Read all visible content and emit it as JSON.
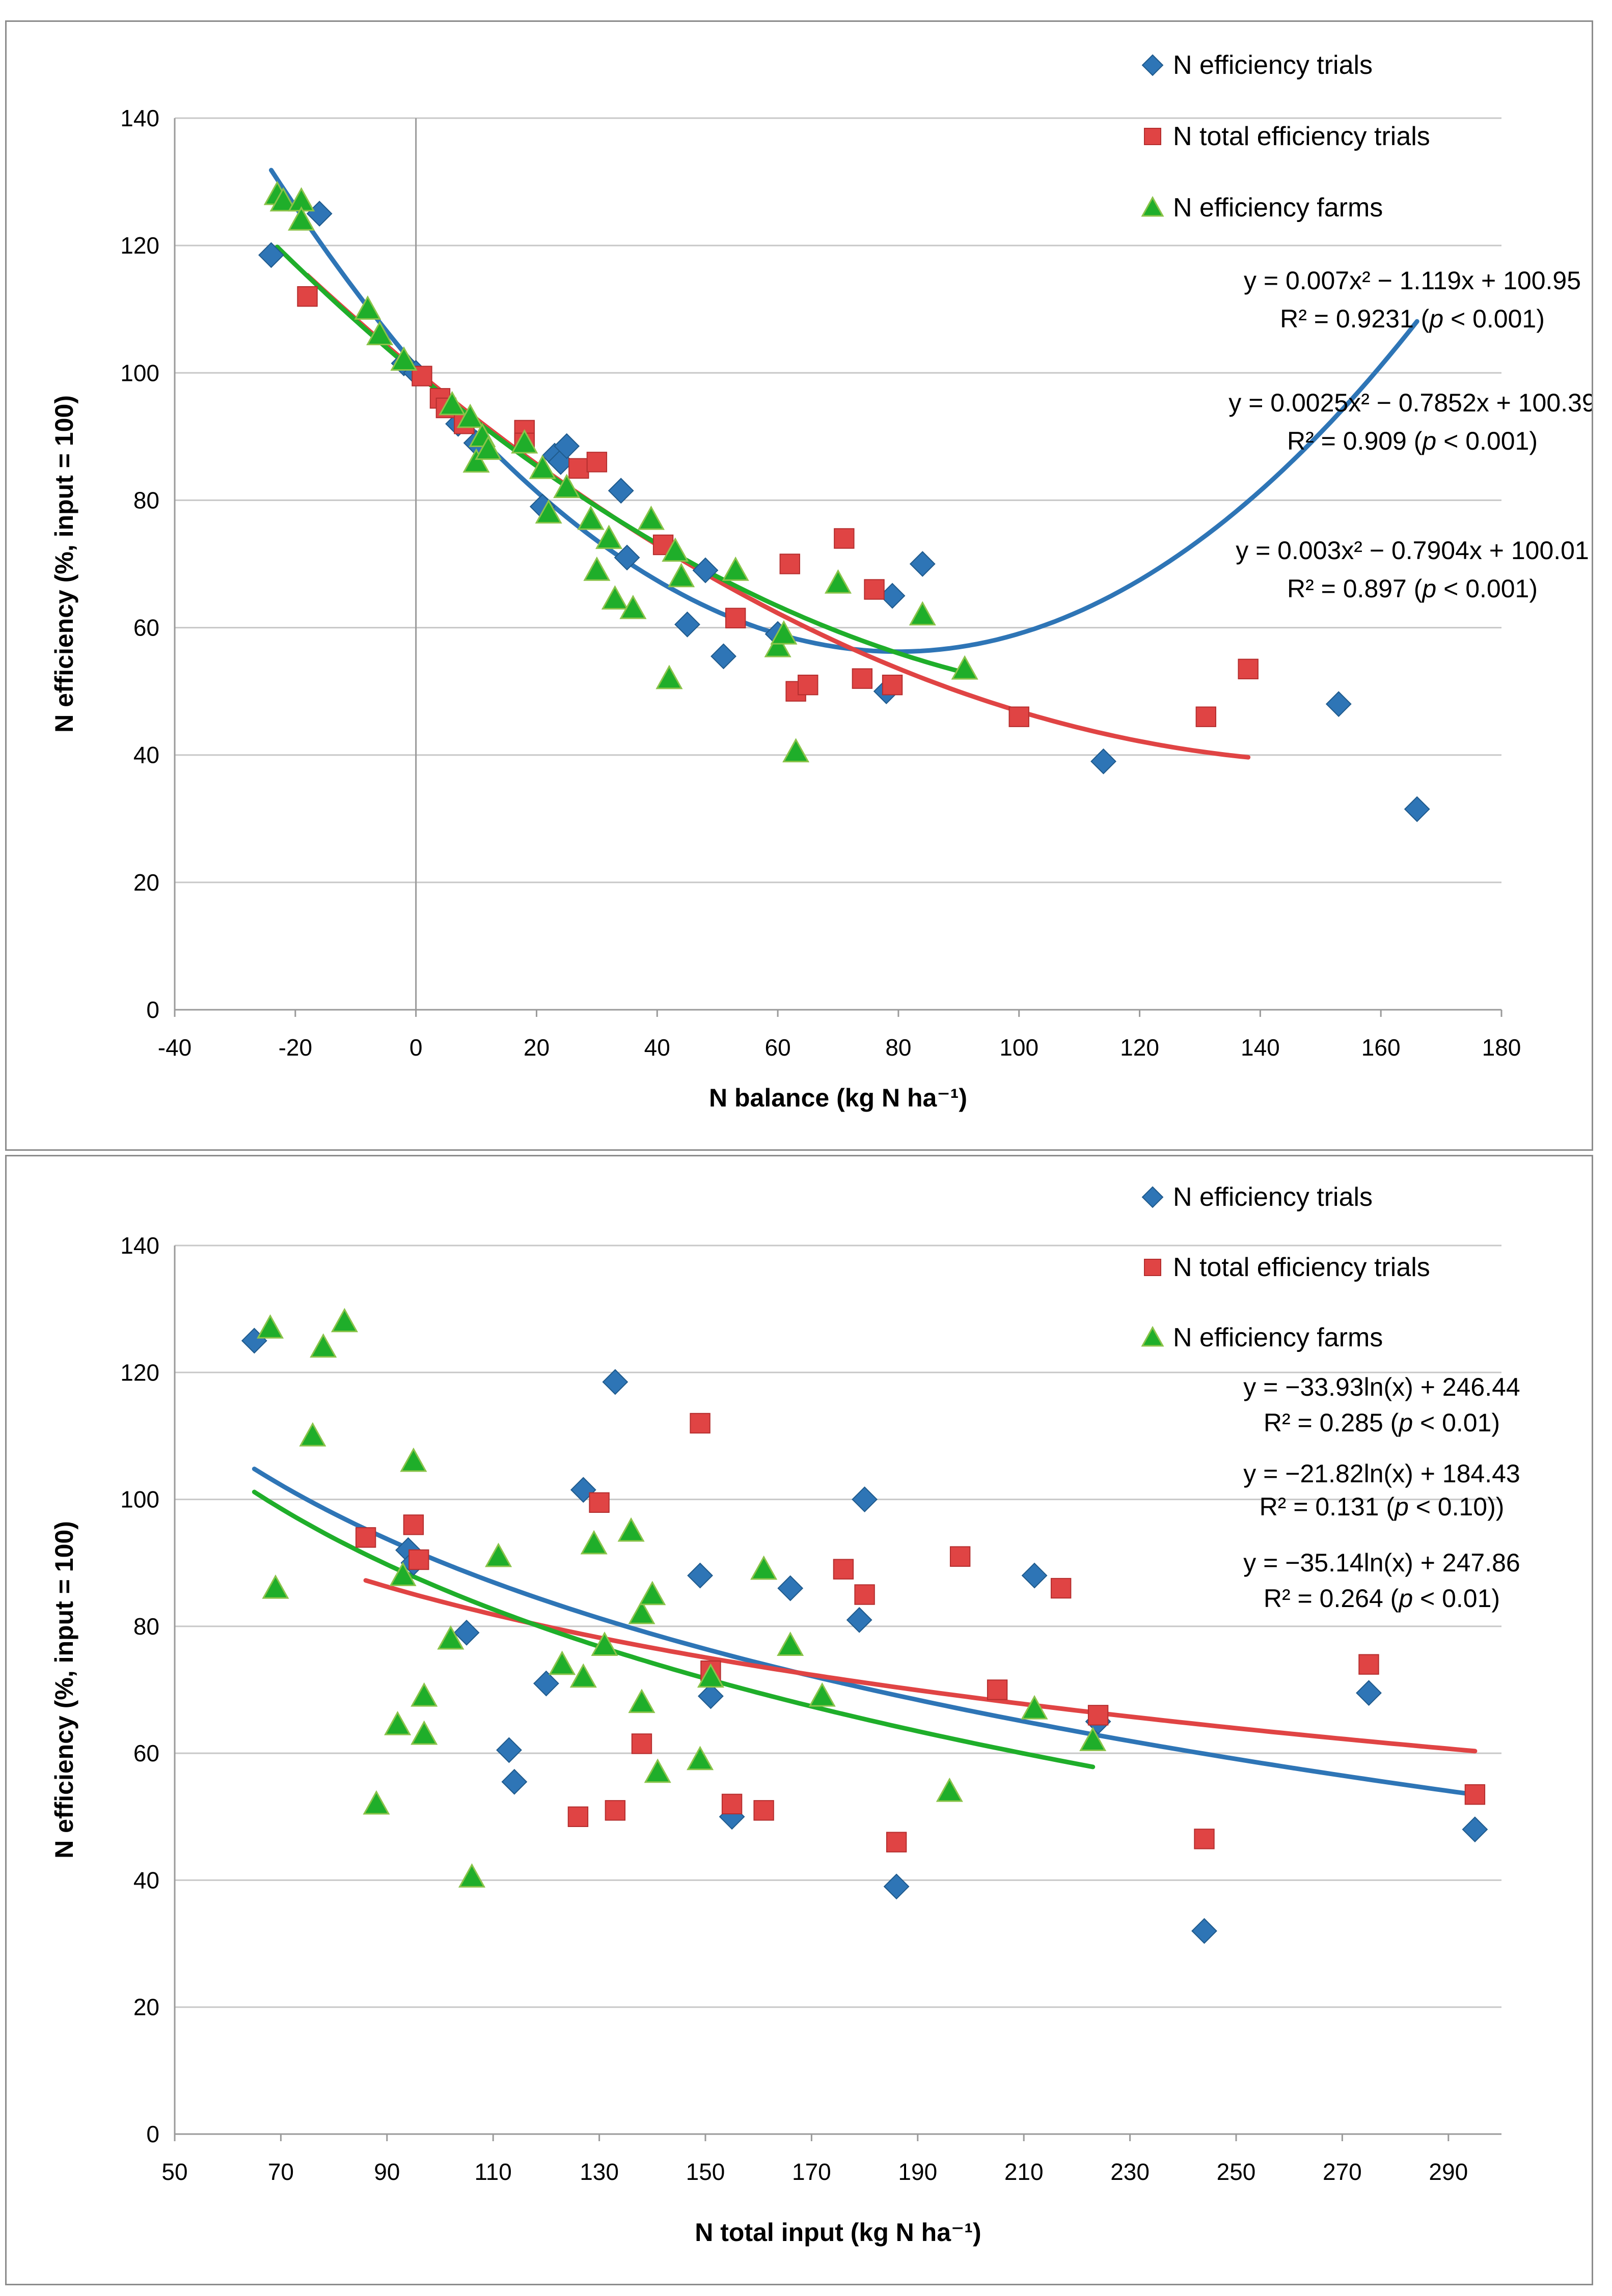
{
  "chart_data": [
    {
      "type": "scatter",
      "xlabel": "N balance (kg N ha⁻¹)",
      "ylabel": "N efficiency (%, input = 100)",
      "xlim": [
        -40,
        180
      ],
      "ylim": [
        0,
        140
      ],
      "xticks": [
        -40,
        -20,
        0,
        20,
        40,
        60,
        80,
        100,
        120,
        140,
        160,
        180
      ],
      "yticks": [
        0,
        20,
        40,
        60,
        80,
        100,
        120,
        140
      ],
      "grid": true,
      "zero_lines": true,
      "legend": [
        {
          "label": "N efficiency trials",
          "marker": "diamond",
          "color": "#2e75b6"
        },
        {
          "label": "N total efficiency trials",
          "marker": "square",
          "color": "#e04444"
        },
        {
          "label": "N efficiency farms",
          "marker": "triangle",
          "color": "#1fae2a"
        }
      ],
      "equations": [
        {
          "eq": "y = 0.007x² − 1.119x + 100.95",
          "r2": "R² = 0.9231 (",
          "p": "p",
          "rest": " < 0.001)"
        },
        {
          "eq": "y = 0.0025x² − 0.7852x + 100.39",
          "r2": "R² = 0.909 (",
          "p": "p",
          "rest": " < 0.001)"
        },
        {
          "eq": "y = 0.003x² − 0.7904x + 100.01",
          "r2": "R² = 0.897 (",
          "p": "p",
          "rest": " < 0.001)"
        }
      ],
      "series": [
        {
          "name": "N efficiency trials",
          "marker": "diamond",
          "color": "#2e75b6",
          "points": [
            [
              -24,
              118.5
            ],
            [
              -16,
              125
            ],
            [
              -2,
              101.5
            ],
            [
              0,
              100
            ],
            [
              7,
              92
            ],
            [
              10,
              89
            ],
            [
              21,
              79
            ],
            [
              23,
              87
            ],
            [
              24,
              86
            ],
            [
              25,
              88.5
            ],
            [
              34,
              81.5
            ],
            [
              35,
              71
            ],
            [
              45,
              60.5
            ],
            [
              48,
              69
            ],
            [
              51,
              55.5
            ],
            [
              60,
              59
            ],
            [
              78,
              50
            ],
            [
              79,
              65
            ],
            [
              84,
              70
            ],
            [
              114,
              39
            ],
            [
              153,
              48
            ],
            [
              166,
              31.5
            ]
          ],
          "fit": {
            "kind": "poly2",
            "a": 0.007,
            "b": -1.119,
            "c": 100.95,
            "xmin": -24,
            "xmax": 166
          }
        },
        {
          "name": "N total efficiency trials",
          "marker": "square",
          "color": "#e04444",
          "points": [
            [
              -18,
              112
            ],
            [
              1,
              99.5
            ],
            [
              4,
              96
            ],
            [
              5,
              94.5
            ],
            [
              8,
              92
            ],
            [
              18,
              91
            ],
            [
              18,
              89
            ],
            [
              27,
              85
            ],
            [
              30,
              86
            ],
            [
              41,
              73
            ],
            [
              53,
              61.5
            ],
            [
              62,
              70
            ],
            [
              63,
              50
            ],
            [
              65,
              51
            ],
            [
              71,
              74
            ],
            [
              74,
              52
            ],
            [
              76,
              66
            ],
            [
              79,
              51
            ],
            [
              100,
              46
            ],
            [
              131,
              46
            ],
            [
              138,
              53.5
            ]
          ],
          "fit": {
            "kind": "poly2",
            "a": 0.0025,
            "b": -0.7852,
            "c": 100.39,
            "xmin": -18,
            "xmax": 138
          }
        },
        {
          "name": "N efficiency farms",
          "marker": "triangle",
          "color": "#1fae2a",
          "points": [
            [
              -23,
              128
            ],
            [
              -22,
              127
            ],
            [
              -19,
              127
            ],
            [
              -19,
              124
            ],
            [
              -8,
              110
            ],
            [
              -6,
              106
            ],
            [
              -2,
              102
            ],
            [
              6,
              95
            ],
            [
              9,
              93
            ],
            [
              10,
              86
            ],
            [
              11,
              90
            ],
            [
              12,
              88
            ],
            [
              18,
              89
            ],
            [
              21,
              85
            ],
            [
              22,
              78
            ],
            [
              25,
              82
            ],
            [
              29,
              77
            ],
            [
              30,
              69
            ],
            [
              32,
              74
            ],
            [
              33,
              64.5
            ],
            [
              36,
              63
            ],
            [
              39,
              77
            ],
            [
              42,
              52
            ],
            [
              43,
              72
            ],
            [
              44,
              68
            ],
            [
              53,
              69
            ],
            [
              60,
              57
            ],
            [
              61,
              59
            ],
            [
              63,
              40.5
            ],
            [
              70,
              67
            ],
            [
              84,
              62
            ],
            [
              91,
              53.5
            ]
          ],
          "fit": {
            "kind": "poly2",
            "a": 0.003,
            "b": -0.7904,
            "c": 100.01,
            "xmin": -23,
            "xmax": 91
          }
        }
      ]
    },
    {
      "type": "scatter",
      "xlabel": "N total input (kg N ha⁻¹)",
      "ylabel": "N efficiency (%, input = 100)",
      "xlim": [
        50,
        300
      ],
      "ylim": [
        0,
        140
      ],
      "xticks": [
        50,
        70,
        90,
        110,
        130,
        150,
        170,
        190,
        210,
        230,
        250,
        270,
        290
      ],
      "yticks": [
        0,
        20,
        40,
        60,
        80,
        100,
        120,
        140
      ],
      "grid": true,
      "zero_lines": false,
      "legend": [
        {
          "label": "N efficiency trials",
          "marker": "diamond",
          "color": "#2e75b6"
        },
        {
          "label": "N total efficiency trials",
          "marker": "square",
          "color": "#e04444"
        },
        {
          "label": "N efficiency farms",
          "marker": "triangle",
          "color": "#1fae2a"
        }
      ],
      "equations": [
        {
          "eq": "y = −33.93ln(x) + 246.44",
          "r2": "R² = 0.285 (",
          "p": "p",
          "rest": " < 0.01)"
        },
        {
          "eq": "y = −21.82ln(x) + 184.43",
          "r2": "R² = 0.131 (",
          "p": "p",
          "rest": " < 0.10))"
        },
        {
          "eq": "y = −35.14ln(x) + 247.86",
          "r2": "R² = 0.264 (",
          "p": "p",
          "rest": " < 0.01)"
        }
      ],
      "series": [
        {
          "name": "N efficiency trials",
          "marker": "diamond",
          "color": "#2e75b6",
          "points": [
            [
              65,
              125
            ],
            [
              94,
              92
            ],
            [
              95,
              90
            ],
            [
              105,
              79
            ],
            [
              113,
              60.5
            ],
            [
              114,
              55.5
            ],
            [
              120,
              71
            ],
            [
              127,
              101.5
            ],
            [
              133,
              118.5
            ],
            [
              149,
              88
            ],
            [
              151,
              69
            ],
            [
              155,
              50
            ],
            [
              166,
              86
            ],
            [
              179,
              81
            ],
            [
              180,
              100
            ],
            [
              186,
              39
            ],
            [
              212,
              88
            ],
            [
              224,
              65
            ],
            [
              244,
              32
            ],
            [
              275,
              69.5
            ],
            [
              295,
              48
            ]
          ],
          "fit": {
            "kind": "log",
            "a": -33.93,
            "b": 246.44,
            "xmin": 65,
            "xmax": 295
          }
        },
        {
          "name": "N total efficiency trials",
          "marker": "square",
          "color": "#e04444",
          "points": [
            [
              86,
              94
            ],
            [
              95,
              96
            ],
            [
              96,
              90.5
            ],
            [
              126,
              50
            ],
            [
              130,
              99.5
            ],
            [
              133,
              51
            ],
            [
              138,
              61.5
            ],
            [
              149,
              112
            ],
            [
              151,
              73
            ],
            [
              155,
              52
            ],
            [
              161,
              51
            ],
            [
              176,
              89
            ],
            [
              180,
              85
            ],
            [
              186,
              46
            ],
            [
              198,
              91
            ],
            [
              205,
              70
            ],
            [
              217,
              86
            ],
            [
              224,
              66
            ],
            [
              244,
              46.5
            ],
            [
              275,
              74
            ],
            [
              295,
              53.5
            ]
          ],
          "fit": {
            "kind": "log",
            "a": -21.82,
            "b": 184.43,
            "xmin": 86,
            "xmax": 295
          }
        },
        {
          "name": "N efficiency farms",
          "marker": "triangle",
          "color": "#1fae2a",
          "points": [
            [
              68,
              127
            ],
            [
              69,
              86
            ],
            [
              76,
              110
            ],
            [
              78,
              124
            ],
            [
              82,
              128
            ],
            [
              88,
              52
            ],
            [
              92,
              64.5
            ],
            [
              93,
              88
            ],
            [
              95,
              106
            ],
            [
              97,
              69
            ],
            [
              97,
              63
            ],
            [
              102,
              78
            ],
            [
              106,
              40.5
            ],
            [
              111,
              91
            ],
            [
              123,
              74
            ],
            [
              127,
              72
            ],
            [
              129,
              93
            ],
            [
              131,
              77
            ],
            [
              136,
              95
            ],
            [
              138,
              68
            ],
            [
              138,
              82
            ],
            [
              140,
              85
            ],
            [
              141,
              57
            ],
            [
              149,
              59
            ],
            [
              151,
              72
            ],
            [
              161,
              89
            ],
            [
              166,
              77
            ],
            [
              172,
              69
            ],
            [
              196,
              54
            ],
            [
              212,
              67
            ],
            [
              223,
              62
            ]
          ],
          "fit": {
            "kind": "log",
            "a": -35.14,
            "b": 247.86,
            "xmin": 65,
            "xmax": 223
          }
        }
      ]
    }
  ]
}
